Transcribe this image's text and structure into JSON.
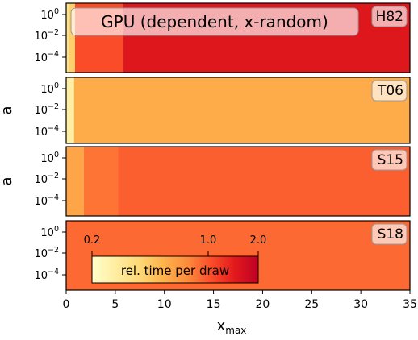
{
  "chart_data": {
    "type": "heatmap",
    "title": "GPU (dependent, x-random)",
    "xlabel": "x",
    "xlabel_sub": "max",
    "xlim": [
      0,
      35
    ],
    "x_ticks": [
      0,
      5,
      10,
      15,
      20,
      25,
      30,
      35
    ],
    "ylabel": "a",
    "y_scale": "log",
    "y_tick_labels": [
      {
        "base": "10",
        "exp": "0",
        "value": 1
      },
      {
        "base": "10",
        "exp": "−2",
        "value": 0.01
      },
      {
        "base": "10",
        "exp": "−4",
        "value": 0.0001
      }
    ],
    "color_scale": {
      "label": "rel. time per draw",
      "scale": "log",
      "range": [
        0.2,
        2.0
      ],
      "ticks": [
        0.2,
        1.0,
        2.0
      ],
      "tick_labels": [
        "0.2",
        "1.0",
        "2.0"
      ],
      "colormap": "YlOrRd",
      "stops": [
        "#ffffcc",
        "#ffeda0",
        "#fed976",
        "#feb24c",
        "#fd8d3c",
        "#fc4e2a",
        "#e31a1c",
        "#bd0026"
      ]
    },
    "panels": [
      {
        "label": "H82",
        "segments": [
          {
            "x0": 0,
            "x1": 0.3,
            "value": 0.33
          },
          {
            "x0": 0.3,
            "x1": 0.9,
            "value": 0.42
          },
          {
            "x0": 0.9,
            "x1": 5.8,
            "value": 1.05
          },
          {
            "x0": 5.8,
            "x1": 35,
            "value": 1.5
          }
        ]
      },
      {
        "label": "T06",
        "segments": [
          {
            "x0": 0,
            "x1": 0.8,
            "value": 0.27
          },
          {
            "x0": 0.8,
            "x1": 35,
            "value": 0.57
          }
        ]
      },
      {
        "label": "S15",
        "segments": [
          {
            "x0": 0,
            "x1": 1.8,
            "value": 0.6
          },
          {
            "x0": 1.8,
            "x1": 5.3,
            "value": 0.85
          },
          {
            "x0": 5.3,
            "x1": 35,
            "value": 0.95
          }
        ]
      },
      {
        "label": "S18",
        "segments": [
          {
            "x0": 0,
            "x1": 35,
            "value": 0.9
          }
        ]
      }
    ]
  }
}
